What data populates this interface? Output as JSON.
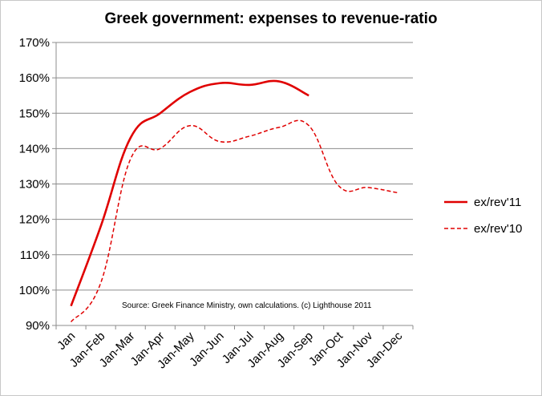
{
  "chart_data": {
    "type": "line",
    "title": "Greek government: expenses to revenue-ratio",
    "categories": [
      "Jan",
      "Jan-Feb",
      "Jan-Mar",
      "Jan-Apr",
      "Jan-May",
      "Jan-Jun",
      "Jan-Jul",
      "Jan-Aug",
      "Jan-Sep",
      "Jan-Oct",
      "Jan-Nov",
      "Jan-Dec"
    ],
    "series": [
      {
        "name": "ex/rev'11",
        "color": "#e00000",
        "style": "solid",
        "values": [
          95.5,
          118,
          143,
          150,
          156,
          158.5,
          158,
          159,
          155,
          null,
          null,
          null
        ]
      },
      {
        "name": "ex/rev'10",
        "color": "#e00000",
        "style": "dashed",
        "values": [
          91,
          102,
          137,
          140,
          146.5,
          142,
          143.5,
          146,
          146.5,
          129.5,
          129,
          127.5
        ]
      }
    ],
    "ylim": [
      90,
      170
    ],
    "y_step": 10,
    "y_tick_labels": [
      "90%",
      "100%",
      "110%",
      "120%",
      "130%",
      "140%",
      "150%",
      "160%",
      "170%"
    ],
    "annotation": "Source: Greek Finance Ministry, own calculations. (c) Lighthouse 2011",
    "grid": "horizontal",
    "legend_position": "right",
    "xlabel": "",
    "ylabel": ""
  }
}
